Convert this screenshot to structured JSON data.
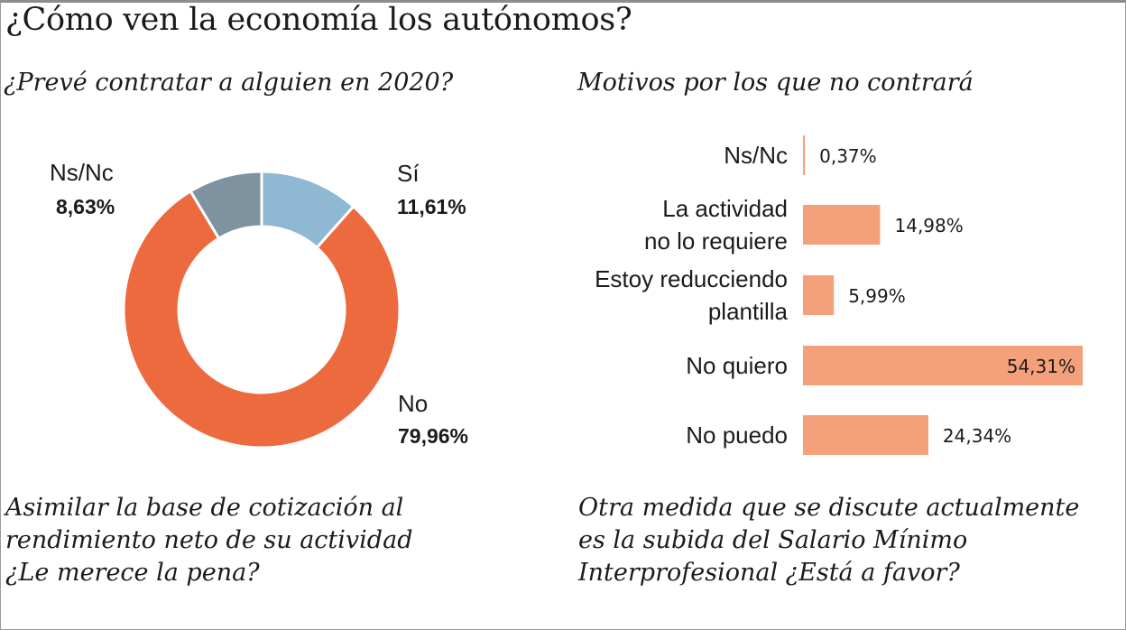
{
  "title": "¿Cómo ven la economía los autónomos?",
  "colors": {
    "si": "#8fb8d3",
    "no": "#ec6a3d",
    "nsnc": "#7e929f",
    "bar": "#f4a07a"
  },
  "chart_data": [
    {
      "type": "pie",
      "title": "¿Prevé contratar a alguien en 2020?",
      "slices": [
        {
          "name": "Sí",
          "value": 11.61,
          "label": "11,61%"
        },
        {
          "name": "No",
          "value": 79.96,
          "label": "79,96%"
        },
        {
          "name": "Ns/Nc",
          "value": 8.63,
          "label": "8,63%"
        }
      ]
    },
    {
      "type": "bar",
      "orientation": "horizontal",
      "title": "Motivos por los que no contrará",
      "categories": [
        "Ns/Nc",
        "La actividad\nno lo requiere",
        "Estoy reducciendo\nplantilla",
        "No quiero",
        "No puedo"
      ],
      "values": [
        0.37,
        14.98,
        5.99,
        54.31,
        24.34
      ],
      "value_labels": [
        "0,37%",
        "14,98%",
        "5,99%",
        "54,31%",
        "24,34%"
      ]
    }
  ],
  "questions": {
    "left": "Asimilar la base de cotización al\nrendimiento neto de su actividad\n¿Le merece la pena?",
    "right": "Otra medida que se discute actualmente\nes la subida del Salario Mínimo\nInterprofesional ¿Está a favor?"
  }
}
